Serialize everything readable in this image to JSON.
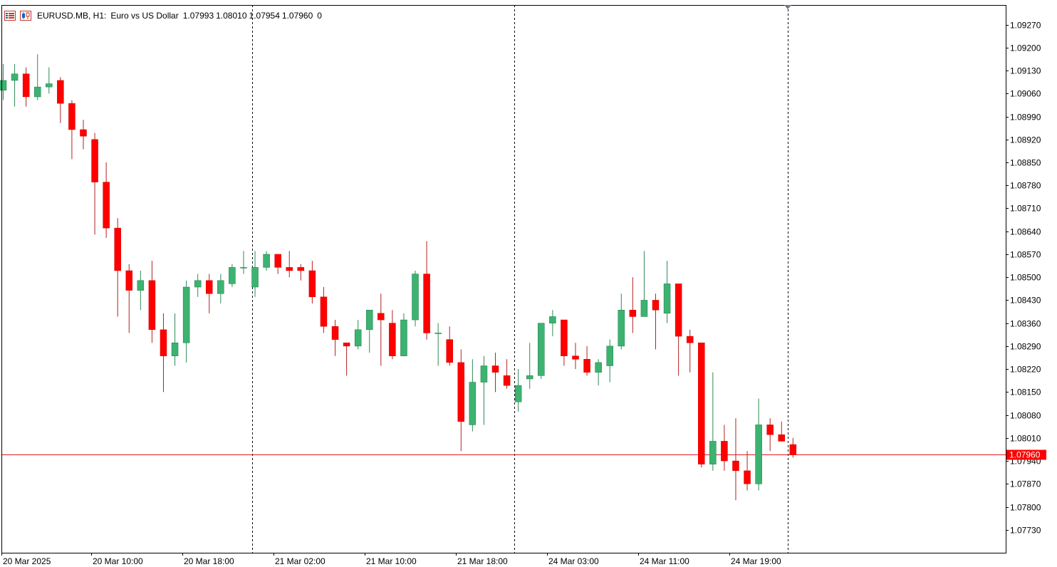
{
  "header": {
    "symbol": "EURUSD.MB, H1:",
    "description": "Euro vs US Dollar",
    "open": "1.07993",
    "high": "1.08010",
    "low": "1.07954",
    "close": "1.07960",
    "volume": "0"
  },
  "colors": {
    "bull": "#3cb371",
    "bear": "#ff0000",
    "wick_bull": "#2e8b57",
    "wick_bear": "#b22222",
    "price_line": "#e31a1c",
    "price_label_bg": "#ff0000",
    "axis": "#000000"
  },
  "chart_data": {
    "type": "candlestick",
    "symbol": "EURUSD.MB",
    "timeframe": "H1",
    "ylim": [
      1.0766,
      1.0933
    ],
    "y_ticks": [
      "1.09270",
      "1.09200",
      "1.09130",
      "1.09060",
      "1.08990",
      "1.08920",
      "1.08850",
      "1.08780",
      "1.08710",
      "1.08640",
      "1.08570",
      "1.08500",
      "1.08430",
      "1.08360",
      "1.08290",
      "1.08220",
      "1.08150",
      "1.08080",
      "1.08010",
      "1.07940",
      "1.07870",
      "1.07800",
      "1.07730"
    ],
    "x_labels": [
      "20 Mar 2025",
      "20 Mar 10:00",
      "20 Mar 18:00",
      "21 Mar 02:00",
      "21 Mar 10:00",
      "21 Mar 18:00",
      "24 Mar 03:00",
      "24 Mar 11:00",
      "24 Mar 19:00"
    ],
    "current_price": "1.07960",
    "candles": [
      {
        "o": 1.0907,
        "h": 1.0915,
        "l": 1.0904,
        "c": 1.091
      },
      {
        "o": 1.091,
        "h": 1.0915,
        "l": 1.0902,
        "c": 1.0912
      },
      {
        "o": 1.0912,
        "h": 1.0914,
        "l": 1.0902,
        "c": 1.0905
      },
      {
        "o": 1.0905,
        "h": 1.0918,
        "l": 1.0904,
        "c": 1.0908
      },
      {
        "o": 1.0908,
        "h": 1.0914,
        "l": 1.0906,
        "c": 1.0909
      },
      {
        "o": 1.091,
        "h": 1.0911,
        "l": 1.0897,
        "c": 1.0903
      },
      {
        "o": 1.0903,
        "h": 1.0904,
        "l": 1.0886,
        "c": 1.0895
      },
      {
        "o": 1.0895,
        "h": 1.0898,
        "l": 1.0889,
        "c": 1.0893
      },
      {
        "o": 1.0892,
        "h": 1.0894,
        "l": 1.0863,
        "c": 1.0879
      },
      {
        "o": 1.0879,
        "h": 1.0885,
        "l": 1.0862,
        "c": 1.0865
      },
      {
        "o": 1.0865,
        "h": 1.0868,
        "l": 1.0838,
        "c": 1.0852
      },
      {
        "o": 1.0852,
        "h": 1.0854,
        "l": 1.0833,
        "c": 1.0846
      },
      {
        "o": 1.0846,
        "h": 1.0852,
        "l": 1.084,
        "c": 1.0849
      },
      {
        "o": 1.0849,
        "h": 1.0855,
        "l": 1.083,
        "c": 1.0834
      },
      {
        "o": 1.0834,
        "h": 1.0839,
        "l": 1.0815,
        "c": 1.0826
      },
      {
        "o": 1.0826,
        "h": 1.0839,
        "l": 1.0823,
        "c": 1.083
      },
      {
        "o": 1.083,
        "h": 1.0849,
        "l": 1.0824,
        "c": 1.0847
      },
      {
        "o": 1.0847,
        "h": 1.0851,
        "l": 1.0844,
        "c": 1.0849
      },
      {
        "o": 1.0849,
        "h": 1.0851,
        "l": 1.0839,
        "c": 1.0845
      },
      {
        "o": 1.0845,
        "h": 1.0851,
        "l": 1.0842,
        "c": 1.0849
      },
      {
        "o": 1.0848,
        "h": 1.0854,
        "l": 1.0847,
        "c": 1.0853
      },
      {
        "o": 1.0853,
        "h": 1.0858,
        "l": 1.0851,
        "c": 1.0853
      },
      {
        "o": 1.0847,
        "h": 1.0858,
        "l": 1.0844,
        "c": 1.0853
      },
      {
        "o": 1.0853,
        "h": 1.0858,
        "l": 1.0852,
        "c": 1.0857
      },
      {
        "o": 1.0857,
        "h": 1.0857,
        "l": 1.0851,
        "c": 1.0853
      },
      {
        "o": 1.0853,
        "h": 1.0858,
        "l": 1.085,
        "c": 1.0852
      },
      {
        "o": 1.0853,
        "h": 1.0854,
        "l": 1.0849,
        "c": 1.0852
      },
      {
        "o": 1.0852,
        "h": 1.0855,
        "l": 1.0842,
        "c": 1.0844
      },
      {
        "o": 1.0844,
        "h": 1.0847,
        "l": 1.0833,
        "c": 1.0835
      },
      {
        "o": 1.0835,
        "h": 1.0837,
        "l": 1.0826,
        "c": 1.0831
      },
      {
        "o": 1.083,
        "h": 1.083,
        "l": 1.082,
        "c": 1.0829
      },
      {
        "o": 1.0829,
        "h": 1.0837,
        "l": 1.0828,
        "c": 1.0834
      },
      {
        "o": 1.0834,
        "h": 1.084,
        "l": 1.0827,
        "c": 1.084
      },
      {
        "o": 1.0839,
        "h": 1.0845,
        "l": 1.0823,
        "c": 1.0837
      },
      {
        "o": 1.0836,
        "h": 1.084,
        "l": 1.0825,
        "c": 1.0826
      },
      {
        "o": 1.0826,
        "h": 1.0839,
        "l": 1.0826,
        "c": 1.0837
      },
      {
        "o": 1.0837,
        "h": 1.0852,
        "l": 1.0835,
        "c": 1.0851
      },
      {
        "o": 1.0851,
        "h": 1.0861,
        "l": 1.0831,
        "c": 1.0833
      },
      {
        "o": 1.0833,
        "h": 1.0836,
        "l": 1.0823,
        "c": 1.0833
      },
      {
        "o": 1.0831,
        "h": 1.0835,
        "l": 1.0823,
        "c": 1.0824
      },
      {
        "o": 1.0824,
        "h": 1.0828,
        "l": 1.0797,
        "c": 1.0806
      },
      {
        "o": 1.0805,
        "h": 1.0825,
        "l": 1.0803,
        "c": 1.0818
      },
      {
        "o": 1.0818,
        "h": 1.0826,
        "l": 1.0805,
        "c": 1.0823
      },
      {
        "o": 1.0823,
        "h": 1.0827,
        "l": 1.0815,
        "c": 1.0821
      },
      {
        "o": 1.082,
        "h": 1.0825,
        "l": 1.0816,
        "c": 1.0817
      },
      {
        "o": 1.0812,
        "h": 1.0822,
        "l": 1.0809,
        "c": 1.0817
      },
      {
        "o": 1.0819,
        "h": 1.083,
        "l": 1.0816,
        "c": 1.082
      },
      {
        "o": 1.082,
        "h": 1.0836,
        "l": 1.0819,
        "c": 1.0836
      },
      {
        "o": 1.0836,
        "h": 1.084,
        "l": 1.0832,
        "c": 1.0838
      },
      {
        "o": 1.0837,
        "h": 1.0837,
        "l": 1.0823,
        "c": 1.0826
      },
      {
        "o": 1.0826,
        "h": 1.083,
        "l": 1.0822,
        "c": 1.0825
      },
      {
        "o": 1.0825,
        "h": 1.0829,
        "l": 1.082,
        "c": 1.0821
      },
      {
        "o": 1.0821,
        "h": 1.0825,
        "l": 1.0817,
        "c": 1.0824
      },
      {
        "o": 1.0823,
        "h": 1.0831,
        "l": 1.0818,
        "c": 1.0829
      },
      {
        "o": 1.0829,
        "h": 1.0845,
        "l": 1.0828,
        "c": 1.084
      },
      {
        "o": 1.084,
        "h": 1.085,
        "l": 1.0833,
        "c": 1.0838
      },
      {
        "o": 1.0838,
        "h": 1.0858,
        "l": 1.0838,
        "c": 1.0843
      },
      {
        "o": 1.0843,
        "h": 1.0845,
        "l": 1.0828,
        "c": 1.084
      },
      {
        "o": 1.0839,
        "h": 1.0855,
        "l": 1.0836,
        "c": 1.0848
      },
      {
        "o": 1.0848,
        "h": 1.0848,
        "l": 1.082,
        "c": 1.0832
      },
      {
        "o": 1.0832,
        "h": 1.0834,
        "l": 1.0821,
        "c": 1.083
      },
      {
        "o": 1.083,
        "h": 1.083,
        "l": 1.0792,
        "c": 1.0793
      },
      {
        "o": 1.0793,
        "h": 1.0821,
        "l": 1.0791,
        "c": 1.08
      },
      {
        "o": 1.08,
        "h": 1.0805,
        "l": 1.0791,
        "c": 1.0794
      },
      {
        "o": 1.0794,
        "h": 1.0807,
        "l": 1.0782,
        "c": 1.0791
      },
      {
        "o": 1.0791,
        "h": 1.0797,
        "l": 1.0785,
        "c": 1.0787
      },
      {
        "o": 1.0787,
        "h": 1.0813,
        "l": 1.0785,
        "c": 1.0805
      },
      {
        "o": 1.0805,
        "h": 1.0807,
        "l": 1.0797,
        "c": 1.0802
      },
      {
        "o": 1.0802,
        "h": 1.0806,
        "l": 1.08,
        "c": 1.08
      },
      {
        "o": 1.0799,
        "h": 1.0801,
        "l": 1.0795,
        "c": 1.0796
      }
    ]
  }
}
